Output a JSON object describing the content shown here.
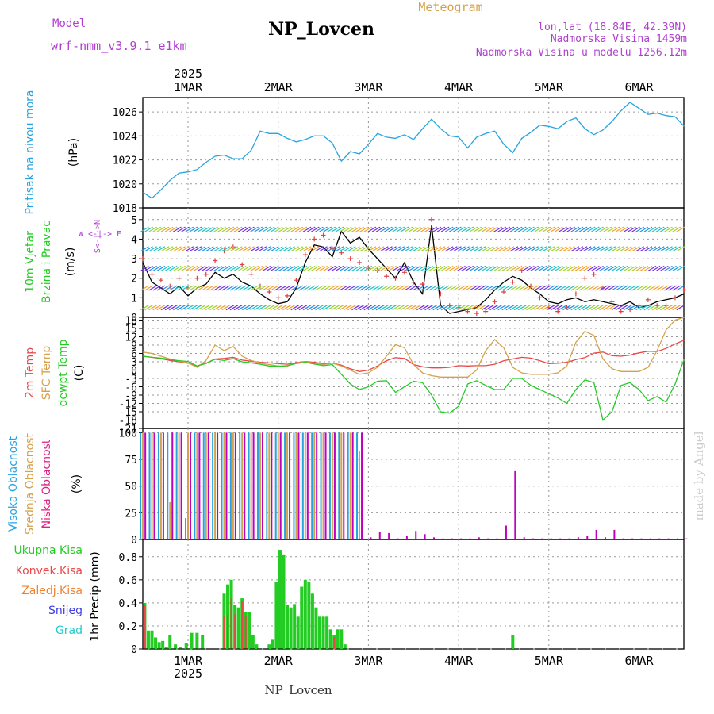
{
  "header": {
    "model_label": "Model",
    "model_name": "wrf-nmm_v3.9.1 e1km",
    "station": "NP_Lovcen",
    "product": "Meteogram",
    "lonlat": "lon,lat (18.84E, 42.39N)",
    "elevation": "Nadmorska Visina 1459m",
    "model_elevation": "Nadmorska Visina u modelu 1256.12m",
    "year_top": "2025",
    "year_bottom": "2025",
    "footer_station": "NP_Lovcen",
    "credit": "made by Angel"
  },
  "days": [
    "1MAR",
    "2MAR",
    "3MAR",
    "4MAR",
    "5MAR",
    "6MAR"
  ],
  "colors": {
    "pressure": "#29a3e0",
    "wind_speed": "#000000",
    "wind_gust": "#e04040",
    "temp2m": "#e84848",
    "sfc_temp": "#d4a24c",
    "dewpt": "#22cc22",
    "high_cloud": "#29a3e0",
    "mid_cloud": "#d4a24c",
    "low_cloud": "#c000c0",
    "total_precip": "#22cc22",
    "convective": "#e84848",
    "frozen": "#f08030",
    "snow": "#4040e0",
    "hail": "#22cccc"
  },
  "chart_data": [
    {
      "type": "line",
      "panel": "pressure",
      "ylabel_1": "Pritisak na nivou mora",
      "ylabel_2": "(hPa)",
      "ylim": [
        1018,
        1027.2
      ],
      "yticks": [
        "1018",
        "1020",
        "1022",
        "1024",
        "1026"
      ],
      "x_days": [
        0.5,
        0.6,
        0.7,
        0.8,
        0.9,
        1.0,
        1.1,
        1.2,
        1.3,
        1.4,
        1.5,
        1.6,
        1.7,
        1.8,
        1.9,
        2.0,
        2.1,
        2.2,
        2.3,
        2.4,
        2.5,
        2.6,
        2.7,
        2.8,
        2.9,
        3.0,
        3.1,
        3.2,
        3.3,
        3.4,
        3.5,
        3.6,
        3.7,
        3.8,
        3.9,
        4.0,
        4.1,
        4.2,
        4.3,
        4.4,
        4.5,
        4.6,
        4.7,
        4.8,
        4.9,
        5.0,
        5.1,
        5.2,
        5.3,
        5.4,
        5.5,
        5.6,
        5.7,
        5.8,
        5.9,
        6.0,
        6.1,
        6.2,
        6.3,
        6.4,
        6.5
      ],
      "values": [
        1019.3,
        1018.8,
        1019.5,
        1020.3,
        1020.9,
        1021.0,
        1021.2,
        1021.8,
        1022.3,
        1022.4,
        1022.1,
        1022.1,
        1022.8,
        1024.4,
        1024.2,
        1024.2,
        1023.8,
        1023.5,
        1023.7,
        1024.0,
        1024.0,
        1023.4,
        1021.9,
        1022.7,
        1022.5,
        1023.3,
        1024.2,
        1023.9,
        1023.8,
        1024.1,
        1023.7,
        1024.6,
        1025.4,
        1024.6,
        1024.0,
        1023.9,
        1023.0,
        1023.9,
        1024.2,
        1024.4,
        1023.3,
        1022.6,
        1023.8,
        1024.3,
        1024.9,
        1024.8,
        1024.6,
        1025.2,
        1025.5,
        1024.6,
        1024.1,
        1024.5,
        1025.2,
        1026.1,
        1026.8,
        1026.3,
        1025.8,
        1025.9,
        1025.7,
        1025.6,
        1024.8
      ]
    },
    {
      "type": "line",
      "panel": "wind",
      "ylabel_1": "10m Vjetar",
      "ylabel_2": "Brzina i Pravac",
      "ylabel_3": "(m/s)",
      "compass_label": "W <-|-> E",
      "compass_ns": "S<-|->N",
      "ylim": [
        0,
        5.6
      ],
      "yticks": [
        "0",
        "1",
        "2",
        "3",
        "4",
        "5"
      ],
      "x_days": [
        0.5,
        0.6,
        0.7,
        0.8,
        0.9,
        1.0,
        1.1,
        1.2,
        1.3,
        1.4,
        1.5,
        1.6,
        1.7,
        1.8,
        1.9,
        2.0,
        2.1,
        2.2,
        2.3,
        2.4,
        2.5,
        2.6,
        2.7,
        2.8,
        2.9,
        3.0,
        3.1,
        3.2,
        3.3,
        3.4,
        3.5,
        3.6,
        3.7,
        3.8,
        3.9,
        4.0,
        4.1,
        4.2,
        4.3,
        4.4,
        4.5,
        4.6,
        4.7,
        4.8,
        4.9,
        5.0,
        5.1,
        5.2,
        5.3,
        5.4,
        5.5,
        5.6,
        5.7,
        5.8,
        5.9,
        6.0,
        6.1,
        6.2,
        6.3,
        6.4,
        6.5
      ],
      "series": [
        {
          "name": "wind_speed",
          "values": [
            2.8,
            1.8,
            1.5,
            1.2,
            1.6,
            1.1,
            1.5,
            1.7,
            2.3,
            2.0,
            2.2,
            1.8,
            1.6,
            1.2,
            0.9,
            0.7,
            0.8,
            1.5,
            2.8,
            3.7,
            3.6,
            3.1,
            4.4,
            3.8,
            4.1,
            3.5,
            3.0,
            2.5,
            2.0,
            2.8,
            1.8,
            1.2,
            4.7,
            0.6,
            0.2,
            0.3,
            0.4,
            0.5,
            0.9,
            1.4,
            1.8,
            2.1,
            1.9,
            1.5,
            1.2,
            0.8,
            0.7,
            0.9,
            1.0,
            0.8,
            0.9,
            0.8,
            0.7,
            0.6,
            0.8,
            0.5,
            0.6,
            0.8,
            0.9,
            1.0,
            1.2
          ]
        },
        {
          "name": "wind_gust",
          "values": [
            3.0,
            2.2,
            1.9,
            1.6,
            2.0,
            1.5,
            2.0,
            2.2,
            2.9,
            3.4,
            3.6,
            2.7,
            2.2,
            1.6,
            1.3,
            1.0,
            1.1,
            1.9,
            3.2,
            4.0,
            4.2,
            3.5,
            3.3,
            3.0,
            2.8,
            2.5,
            2.4,
            2.1,
            2.0,
            2.3,
            1.8,
            1.7,
            5.0,
            1.2,
            0.6,
            0.5,
            0.3,
            0.2,
            0.3,
            0.8,
            1.3,
            1.8,
            2.4,
            1.6,
            1.0,
            0.5,
            0.3,
            0.5,
            1.2,
            2.0,
            2.2,
            1.5,
            0.8,
            0.3,
            0.4,
            0.6,
            0.9,
            0.6,
            0.6,
            1.0,
            1.4
          ]
        }
      ]
    },
    {
      "type": "line",
      "panel": "temperature",
      "ylabel_1": "2m Temp",
      "ylabel_2": "SFC Temp",
      "ylabel_3": "dewpt Temp",
      "ylabel_4": "(C)",
      "ylim": [
        -21,
        19
      ],
      "yticks": [
        "-21",
        "-18",
        "-15",
        "-12",
        "-9",
        "-6",
        "-3",
        "0",
        "3",
        "6",
        "9",
        "12",
        "15",
        "18"
      ],
      "x_days": [
        0.5,
        0.6,
        0.7,
        0.8,
        0.9,
        1.0,
        1.1,
        1.2,
        1.3,
        1.4,
        1.5,
        1.6,
        1.7,
        1.8,
        1.9,
        2.0,
        2.1,
        2.2,
        2.3,
        2.4,
        2.5,
        2.6,
        2.7,
        2.8,
        2.9,
        3.0,
        3.1,
        3.2,
        3.3,
        3.4,
        3.5,
        3.6,
        3.7,
        3.8,
        3.9,
        4.0,
        4.1,
        4.2,
        4.3,
        4.4,
        4.5,
        4.6,
        4.7,
        4.8,
        4.9,
        5.0,
        5.1,
        5.2,
        5.3,
        5.4,
        5.5,
        5.6,
        5.7,
        5.8,
        5.9,
        6.0,
        6.1,
        6.2,
        6.3,
        6.4,
        6.5
      ],
      "series": [
        {
          "name": "2m Temp",
          "values": [
            5.0,
            4.6,
            4.1,
            3.5,
            3.0,
            2.5,
            1.5,
            2.5,
            4.0,
            4.2,
            4.6,
            3.6,
            3.2,
            2.8,
            2.6,
            2.3,
            2.1,
            2.7,
            3.1,
            2.8,
            2.3,
            2.5,
            1.8,
            0.5,
            -0.5,
            0.0,
            1.5,
            3.4,
            4.5,
            4.2,
            2.0,
            1.2,
            0.8,
            0.8,
            1.0,
            1.6,
            1.5,
            1.6,
            1.6,
            2.1,
            3.4,
            4.0,
            4.6,
            4.3,
            3.4,
            2.3,
            2.5,
            2.8,
            3.8,
            4.5,
            6.1,
            6.5,
            5.2,
            5.0,
            5.4,
            6.2,
            6.8,
            6.7,
            7.8,
            9.4,
            10.8
          ]
        },
        {
          "name": "SFC Temp",
          "values": [
            6.5,
            6.0,
            5.0,
            4.0,
            3.2,
            2.6,
            1.0,
            3.5,
            9.0,
            7.0,
            8.5,
            5.0,
            3.5,
            2.5,
            2.0,
            1.5,
            1.5,
            2.5,
            3.0,
            2.5,
            2.0,
            2.5,
            1.5,
            0.0,
            -1.5,
            -1.0,
            1.0,
            5.0,
            9.2,
            8.0,
            2.0,
            -1.0,
            -2.0,
            -2.5,
            -2.5,
            -2.5,
            -2.5,
            0.0,
            7.0,
            11.0,
            8.0,
            1.0,
            -1.0,
            -1.5,
            -1.5,
            -1.5,
            -1.0,
            1.5,
            10.0,
            14.0,
            12.5,
            4.0,
            0.5,
            -0.5,
            -0.5,
            -0.5,
            1.0,
            7.0,
            14.5,
            18.0,
            19.0
          ]
        },
        {
          "name": "dewpt Temp",
          "values": [
            5.0,
            4.6,
            4.3,
            3.8,
            3.4,
            3.1,
            1.5,
            2.4,
            3.9,
            3.5,
            4.1,
            3.0,
            2.6,
            2.1,
            1.5,
            1.3,
            1.6,
            2.4,
            2.8,
            2.2,
            1.6,
            2.0,
            -1.5,
            -5.0,
            -7.0,
            -6.0,
            -4.0,
            -3.8,
            -8.0,
            -6.0,
            -4.0,
            -4.5,
            -9.0,
            -15.0,
            -15.5,
            -13.0,
            -5.0,
            -3.8,
            -5.5,
            -7.0,
            -7.0,
            -3.0,
            -3.0,
            -5.5,
            -7.0,
            -8.5,
            -10.0,
            -12.0,
            -7.0,
            -3.5,
            -4.5,
            -18.0,
            -15.0,
            -5.5,
            -4.5,
            -7.0,
            -11.0,
            -9.5,
            -11.5,
            -5.0,
            4.0
          ]
        }
      ]
    },
    {
      "type": "bar",
      "panel": "clouds",
      "ylabel_1": "Visoka Oblacnost",
      "ylabel_2": "Srednja Oblacnost",
      "ylabel_3": "Niska Oblacnost",
      "ylabel_4": "(%)",
      "ylim": [
        0,
        104
      ],
      "yticks": [
        "0",
        "25",
        "50",
        "75",
        "100"
      ],
      "x_days": [
        0.5,
        0.6,
        0.7,
        0.8,
        0.9,
        1.0,
        1.1,
        1.2,
        1.3,
        1.4,
        1.5,
        1.6,
        1.7,
        1.8,
        1.9,
        2.0,
        2.1,
        2.2,
        2.3,
        2.4,
        2.5,
        2.6,
        2.7,
        2.8,
        2.9,
        3.0,
        3.1,
        3.2,
        3.3,
        3.4,
        3.5,
        3.6,
        3.7,
        3.8,
        3.9,
        4.0,
        4.1,
        4.2,
        4.3,
        4.4,
        4.5,
        4.6,
        4.7,
        4.8,
        4.9,
        5.0,
        5.1,
        5.2,
        5.3,
        5.4,
        5.5,
        5.6,
        5.7,
        5.8,
        5.9,
        6.0,
        6.1,
        6.2,
        6.3,
        6.4,
        6.5
      ],
      "series": [
        {
          "name": "Visoka Oblacnost",
          "values": [
            100,
            100,
            100,
            100,
            100,
            20,
            100,
            100,
            100,
            100,
            100,
            100,
            100,
            100,
            100,
            100,
            100,
            100,
            100,
            100,
            100,
            100,
            100,
            100,
            100,
            0,
            0,
            0,
            0,
            0,
            0,
            0,
            0,
            0,
            0,
            0,
            0,
            0,
            0,
            0,
            0,
            0,
            0,
            0,
            0,
            0,
            0,
            0,
            0,
            0,
            0,
            0,
            0,
            0,
            0,
            0,
            0,
            0,
            0,
            0,
            0
          ]
        },
        {
          "name": "Srednja Oblacnost",
          "values": [
            100,
            100,
            100,
            35,
            100,
            100,
            100,
            100,
            100,
            100,
            100,
            100,
            100,
            100,
            100,
            100,
            100,
            100,
            100,
            100,
            100,
            100,
            100,
            100,
            83,
            0,
            0,
            0,
            0,
            0,
            0,
            0,
            0,
            0,
            0,
            0,
            0,
            0,
            0,
            0,
            0,
            0,
            0,
            0,
            0,
            0,
            0,
            0,
            0,
            0,
            0,
            0,
            0,
            0,
            0,
            0,
            0,
            0,
            0,
            0,
            0
          ]
        },
        {
          "name": "Niska Oblacnost",
          "values": [
            100,
            100,
            100,
            100,
            100,
            100,
            100,
            100,
            100,
            100,
            100,
            100,
            100,
            100,
            100,
            100,
            100,
            100,
            100,
            100,
            100,
            100,
            100,
            100,
            100,
            2,
            7,
            6,
            1,
            3,
            8,
            5,
            2,
            1,
            1,
            1,
            1,
            2,
            1,
            1,
            13,
            64,
            2,
            1,
            1,
            1,
            1,
            1,
            2,
            3,
            9,
            2,
            9,
            1,
            1,
            1,
            1,
            1,
            1,
            1,
            1
          ]
        }
      ]
    },
    {
      "type": "bar",
      "panel": "precip",
      "ylabel_1": "1hr Precip (mm)",
      "legend": [
        "Ukupna Kisa",
        "Konvek.Kisa",
        "Zaledj.Kisa",
        "Snijeg",
        "Grad"
      ],
      "ylim": [
        0,
        0.95
      ],
      "yticks": [
        "0",
        "0.2",
        "0.4",
        "0.6",
        "0.8"
      ],
      "x_days": [
        0.52,
        0.56,
        0.6,
        0.64,
        0.68,
        0.72,
        0.76,
        0.8,
        0.86,
        0.92,
        0.98,
        1.04,
        1.1,
        1.16,
        1.4,
        1.44,
        1.48,
        1.52,
        1.56,
        1.6,
        1.64,
        1.68,
        1.72,
        1.76,
        1.9,
        1.94,
        1.98,
        2.02,
        2.06,
        2.1,
        2.14,
        2.18,
        2.22,
        2.26,
        2.3,
        2.34,
        2.38,
        2.42,
        2.46,
        2.5,
        2.54,
        2.58,
        2.62,
        2.66,
        2.7,
        2.74,
        4.6
      ],
      "series": [
        {
          "name": "Ukupna Kisa",
          "values": [
            0.4,
            0.16,
            0.16,
            0.1,
            0.06,
            0.07,
            0.02,
            0.12,
            0.04,
            0.02,
            0.05,
            0.14,
            0.14,
            0.12,
            0.48,
            0.56,
            0.6,
            0.38,
            0.36,
            0.44,
            0.32,
            0.32,
            0.12,
            0.04,
            0.04,
            0.08,
            0.58,
            0.86,
            0.82,
            0.38,
            0.36,
            0.39,
            0.28,
            0.54,
            0.6,
            0.58,
            0.48,
            0.36,
            0.28,
            0.28,
            0.28,
            0.17,
            0.12,
            0.17,
            0.17,
            0.04,
            0.12
          ]
        },
        {
          "name": "Konvek.Kisa",
          "values": [
            0.38,
            0.0,
            0.0,
            0.0,
            0.0,
            0.0,
            0.0,
            0.0,
            0.0,
            0.0,
            0.0,
            0.0,
            0.0,
            0.0,
            0.28,
            0.3,
            0.44,
            0.3,
            0.0,
            0.42,
            0.28,
            0.0,
            0.0,
            0.0,
            0.0,
            0.0,
            0.0,
            0.0,
            0.0,
            0.0,
            0.0,
            0.0,
            0.0,
            0.0,
            0.0,
            0.0,
            0.0,
            0.0,
            0.0,
            0.0,
            0.0,
            0.0,
            0.1,
            0.0,
            0.0,
            0.0,
            0.0
          ]
        }
      ]
    }
  ]
}
